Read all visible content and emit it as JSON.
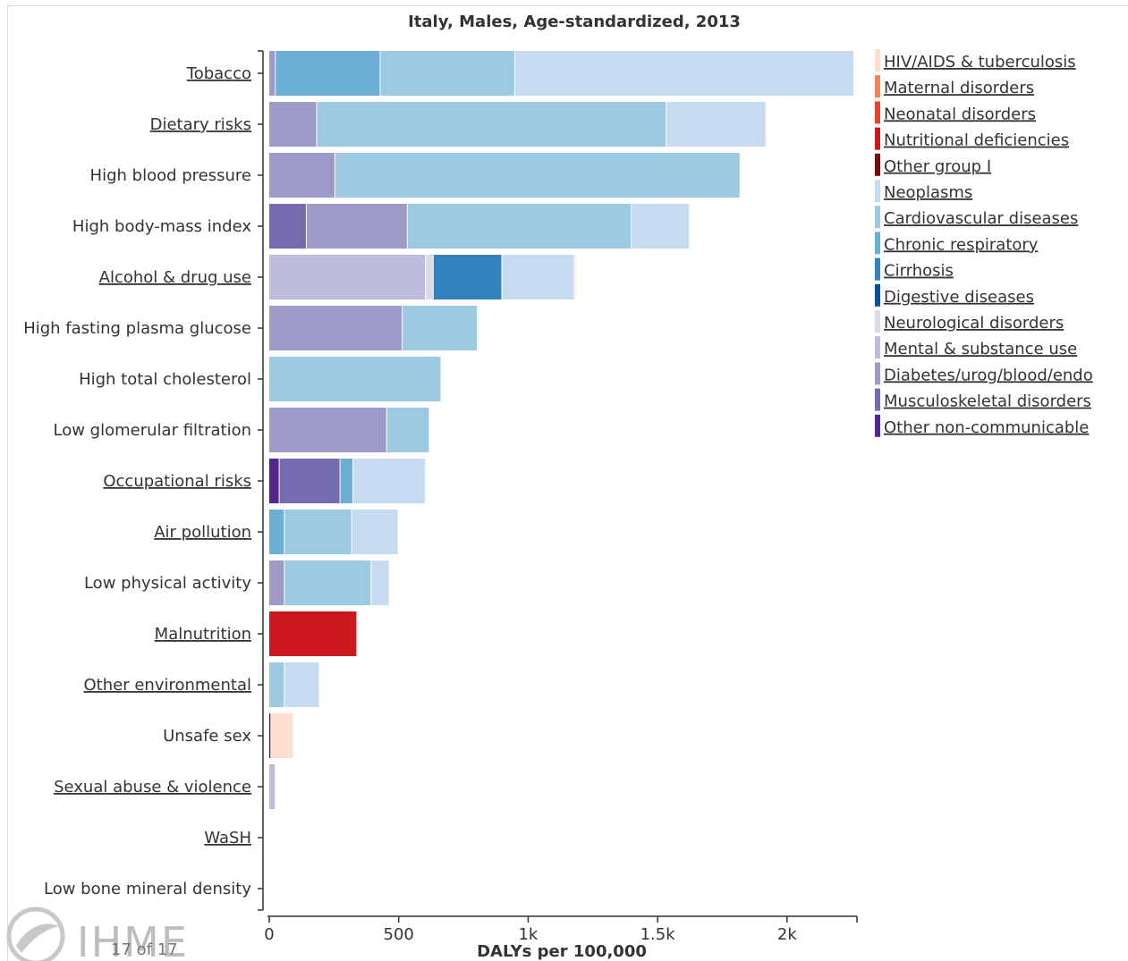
{
  "chart_data": {
    "type": "bar",
    "orientation": "horizontal",
    "stacked": true,
    "title": "Italy, Males, Age-standardized, 2013",
    "xlabel": "DALYs per 100,000",
    "ylabel": "",
    "xlim": [
      0,
      2270
    ],
    "xticks": [
      {
        "value": 0,
        "label": "0"
      },
      {
        "value": 500,
        "label": "500"
      },
      {
        "value": 1000,
        "label": "1k"
      },
      {
        "value": 1500,
        "label": "1.5k"
      },
      {
        "value": 2000,
        "label": "2k"
      }
    ],
    "categories": [
      {
        "label": "Tobacco",
        "linked": true
      },
      {
        "label": "Dietary risks",
        "linked": true
      },
      {
        "label": "High blood pressure",
        "linked": false
      },
      {
        "label": "High body-mass index",
        "linked": false
      },
      {
        "label": "Alcohol & drug use",
        "linked": true
      },
      {
        "label": "High fasting plasma glucose",
        "linked": false
      },
      {
        "label": "High total cholesterol",
        "linked": false
      },
      {
        "label": "Low glomerular filtration",
        "linked": false
      },
      {
        "label": "Occupational risks",
        "linked": true
      },
      {
        "label": "Air pollution",
        "linked": true
      },
      {
        "label": "Low physical activity",
        "linked": false
      },
      {
        "label": "Malnutrition",
        "linked": true
      },
      {
        "label": "Other environmental",
        "linked": true
      },
      {
        "label": "Unsafe sex",
        "linked": false
      },
      {
        "label": "Sexual abuse & violence",
        "linked": true
      },
      {
        "label": "WaSH",
        "linked": true
      },
      {
        "label": "Low bone mineral density",
        "linked": false
      }
    ],
    "series": [
      {
        "name": "HIV/AIDS & tuberculosis",
        "color": "#fdded0",
        "values": [
          0,
          0,
          0,
          0,
          6,
          0,
          0,
          0,
          0,
          0,
          0,
          0,
          0,
          87,
          0,
          0,
          0
        ]
      },
      {
        "name": "Maternal disorders",
        "color": "#f4825a",
        "values": [
          0,
          0,
          0,
          0,
          0,
          0,
          0,
          0,
          0,
          0,
          0,
          0,
          0,
          0,
          0,
          0,
          0
        ]
      },
      {
        "name": "Neonatal disorders",
        "color": "#e5452c",
        "values": [
          0,
          0,
          0,
          0,
          0,
          0,
          0,
          0,
          0,
          0,
          0,
          0,
          0,
          0,
          0,
          0,
          0
        ]
      },
      {
        "name": "Nutritional deficiencies",
        "color": "#cb181d",
        "values": [
          0,
          0,
          0,
          0,
          0,
          0,
          0,
          0,
          0,
          0,
          0,
          340,
          0,
          0,
          0,
          0,
          0
        ]
      },
      {
        "name": "Other group I",
        "color": "#7a0a0e",
        "values": [
          0,
          0,
          0,
          0,
          0,
          0,
          0,
          0,
          0,
          0,
          0,
          0,
          0,
          8,
          0,
          0,
          0
        ]
      },
      {
        "name": "Neoplasms",
        "color": "#c6dbef",
        "values": [
          1310,
          385,
          0,
          225,
          280,
          0,
          0,
          0,
          280,
          180,
          70,
          0,
          135,
          0,
          0,
          0,
          0
        ]
      },
      {
        "name": "Cardiovascular diseases",
        "color": "#9ecae1",
        "values": [
          520,
          1350,
          1565,
          865,
          0,
          290,
          665,
          165,
          0,
          260,
          335,
          0,
          60,
          0,
          0,
          0,
          0
        ]
      },
      {
        "name": "Chronic respiratory",
        "color": "#6baed6",
        "values": [
          405,
          0,
          0,
          0,
          0,
          0,
          0,
          0,
          50,
          60,
          0,
          0,
          0,
          0,
          0,
          0,
          0
        ]
      },
      {
        "name": "Cirrhosis",
        "color": "#3182bd",
        "values": [
          0,
          0,
          0,
          0,
          265,
          0,
          0,
          0,
          0,
          0,
          0,
          0,
          0,
          0,
          0,
          0,
          0
        ]
      },
      {
        "name": "Digestive diseases",
        "color": "#08519c",
        "values": [
          0,
          0,
          0,
          0,
          0,
          0,
          0,
          0,
          0,
          0,
          0,
          0,
          0,
          0,
          0,
          0,
          0
        ]
      },
      {
        "name": "Neurological disorders",
        "color": "#dadaeb",
        "values": [
          0,
          0,
          0,
          0,
          30,
          0,
          0,
          0,
          0,
          0,
          0,
          0,
          0,
          0,
          0,
          0,
          0
        ]
      },
      {
        "name": "Mental & substance use",
        "color": "#bcbddc",
        "values": [
          0,
          0,
          0,
          0,
          605,
          0,
          0,
          0,
          0,
          0,
          0,
          0,
          0,
          0,
          25,
          0,
          0
        ]
      },
      {
        "name": "Diabetes/urog/blood/endo",
        "color": "#9e9ac8",
        "values": [
          25,
          185,
          255,
          390,
          0,
          515,
          0,
          455,
          0,
          0,
          60,
          0,
          0,
          0,
          0,
          0,
          0
        ]
      },
      {
        "name": "Musculoskeletal disorders",
        "color": "#756bb1",
        "values": [
          0,
          0,
          0,
          145,
          0,
          0,
          0,
          0,
          235,
          0,
          0,
          0,
          0,
          0,
          0,
          0,
          0
        ]
      },
      {
        "name": "Other non-communicable",
        "color": "#54278f",
        "values": [
          0,
          0,
          0,
          0,
          0,
          0,
          0,
          0,
          40,
          0,
          0,
          0,
          0,
          0,
          0,
          0,
          0
        ]
      }
    ],
    "stack_order": [
      [
        12,
        7,
        6,
        5
      ],
      [
        12,
        6,
        5
      ],
      [
        12,
        6
      ],
      [
        13,
        12,
        6,
        5
      ],
      [
        11,
        10,
        8,
        5,
        0
      ],
      [
        12,
        6
      ],
      [
        6
      ],
      [
        12,
        6
      ],
      [
        14,
        13,
        7,
        5
      ],
      [
        7,
        6,
        5
      ],
      [
        12,
        6,
        5
      ],
      [
        3
      ],
      [
        6,
        5
      ],
      [
        4,
        0
      ],
      [
        11
      ],
      [],
      []
    ],
    "legend_position": "right",
    "grid": false
  },
  "branding": {
    "logo_text": "IHME",
    "pager": "17 of 17"
  }
}
